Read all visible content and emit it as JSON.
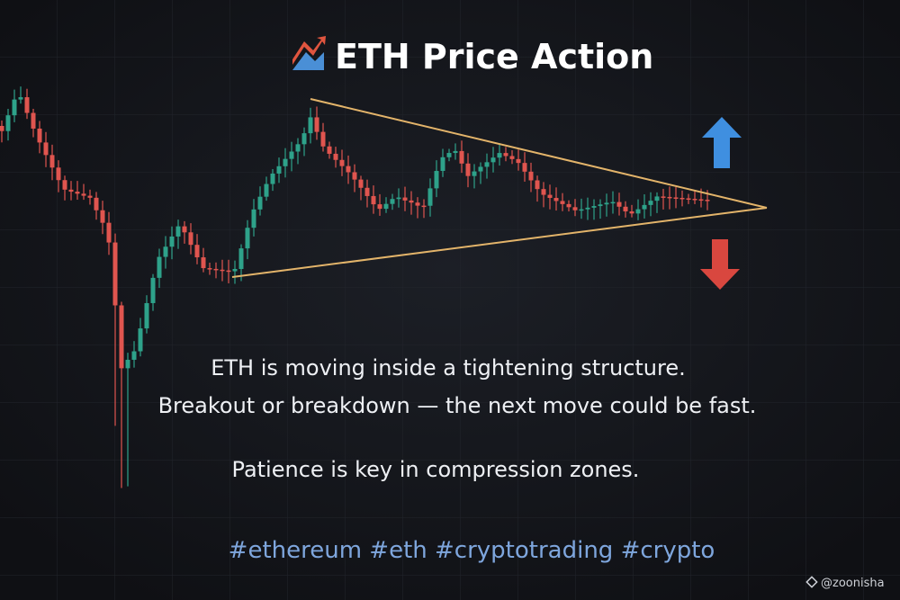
{
  "header": {
    "title": "ETH Price Action"
  },
  "body": {
    "lines": [
      "ETH is moving inside a tightening structure.",
      "Breakout or breakdown — the next move could be fast."
    ],
    "note": "Patience is key in compression zones."
  },
  "hashtags": "#ethereum #eth #cryptotrading #crypto",
  "watermark": "@zoonisha"
}
